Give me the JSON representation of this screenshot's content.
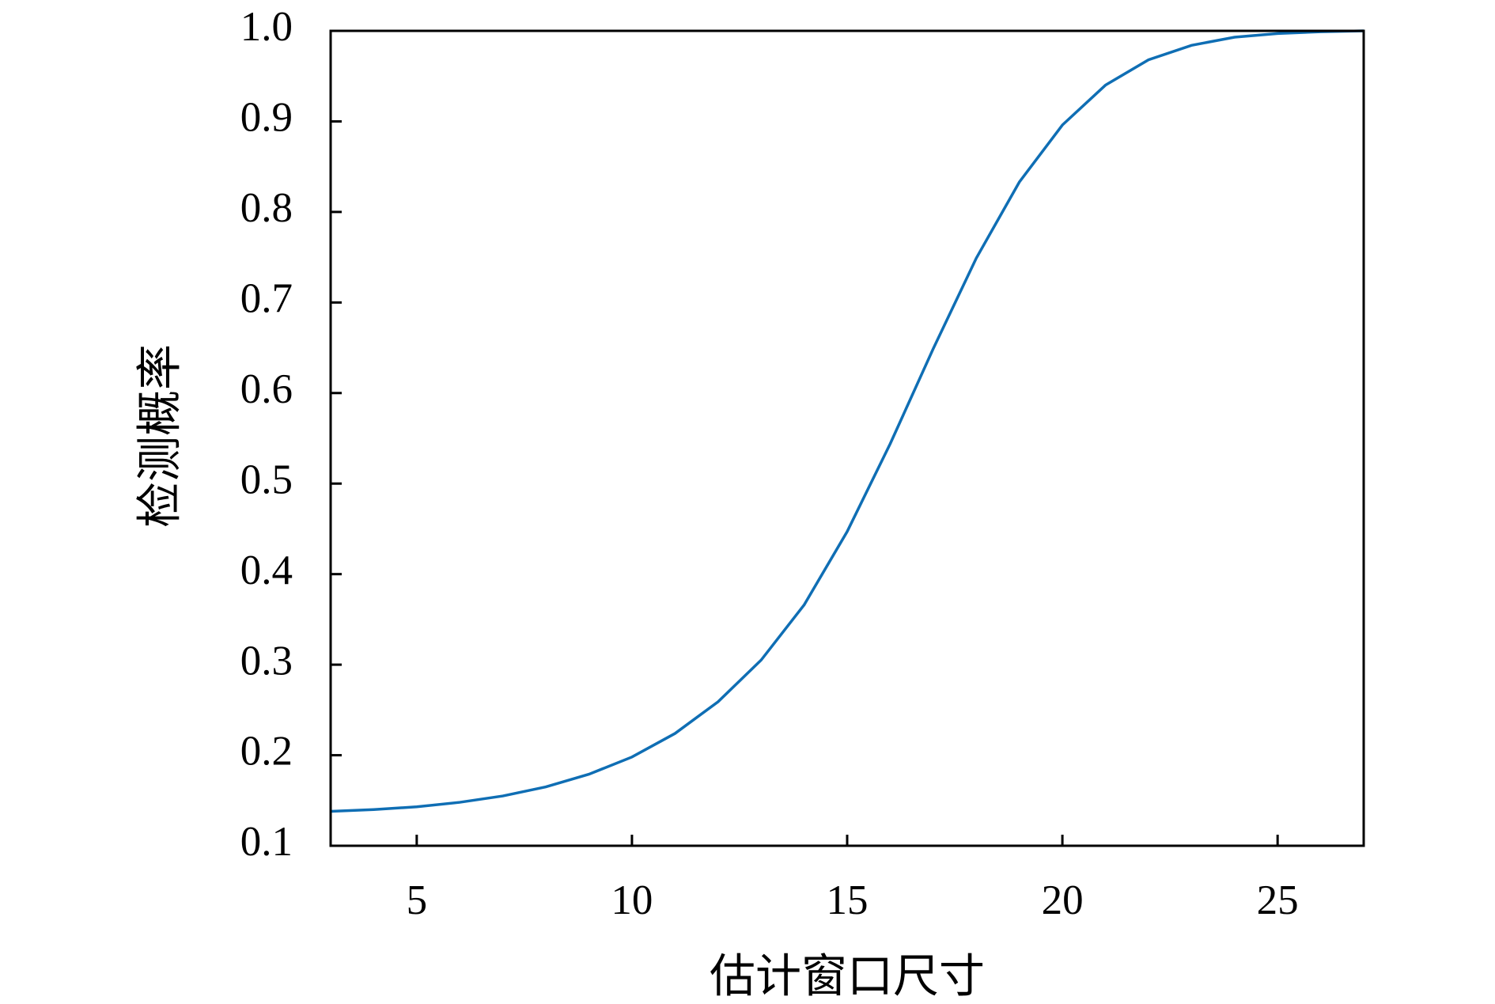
{
  "chart_data": {
    "type": "line",
    "xlabel": "估计窗口尺寸",
    "ylabel": "检测概率",
    "x": [
      3,
      4,
      5,
      6,
      7,
      8,
      9,
      10,
      11,
      12,
      13,
      14,
      15,
      16,
      17,
      18,
      19,
      20,
      21,
      22,
      23,
      24,
      25,
      26,
      27
    ],
    "series": [
      {
        "color": "#0f6eb4",
        "values": [
          0.138,
          0.14,
          0.143,
          0.148,
          0.155,
          0.165,
          0.179,
          0.198,
          0.224,
          0.259,
          0.305,
          0.366,
          0.447,
          0.544,
          0.649,
          0.749,
          0.833,
          0.896,
          0.94,
          0.968,
          0.984,
          0.993,
          0.997,
          0.999,
          1.0
        ]
      }
    ],
    "xlim": [
      3,
      27
    ],
    "xticks": [
      5,
      10,
      15,
      20,
      25
    ],
    "ylim": [
      0.1,
      1.0
    ],
    "yticks": [
      0.1,
      0.2,
      0.3,
      0.4,
      0.5,
      0.6,
      0.7,
      0.8,
      0.9,
      {
        "value": 1.0,
        "label": "1.0"
      }
    ]
  }
}
